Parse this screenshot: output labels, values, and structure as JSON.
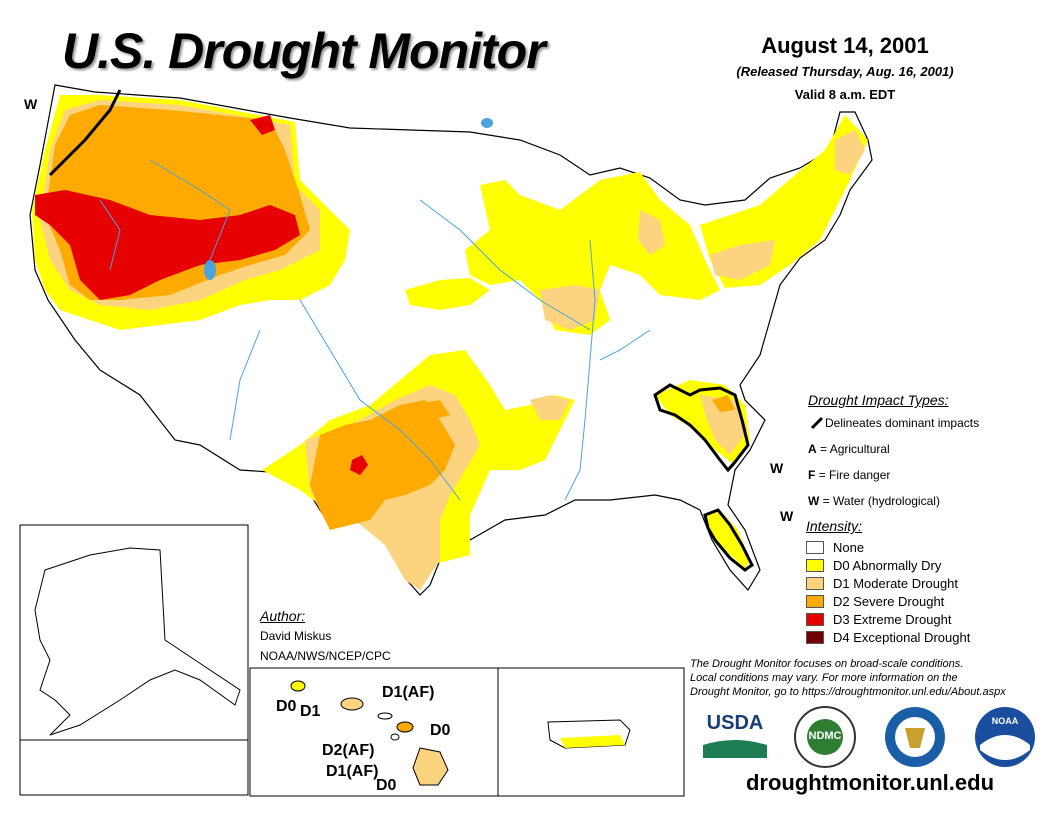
{
  "header": {
    "title": "U.S. Drought Monitor",
    "date": "August 14, 2001",
    "released": "(Released Thursday, Aug. 16, 2001)",
    "valid": "Valid 8 a.m. EDT"
  },
  "map_labels": {
    "w_northwest": "W",
    "w_carolina": "W",
    "w_florida": "W"
  },
  "hawaii_labels": {
    "d0_top": "D0",
    "d1_top": "D1",
    "d1af_top": "D1(AF)",
    "d0_mid": "D0",
    "d2af": "D2(AF)",
    "d1af_bottom": "D1(AF)",
    "d0_bottom": "D0"
  },
  "impact_legend": {
    "heading": "Drought Impact Types:",
    "delineates": "Delineates dominant impacts",
    "types": [
      {
        "key": "A",
        "label": "= Agricultural"
      },
      {
        "key": "F",
        "label": "= Fire danger"
      },
      {
        "key": "W",
        "label": "= Water (hydrological)"
      }
    ]
  },
  "intensity_legend": {
    "heading": "Intensity:",
    "items": [
      {
        "label": "None",
        "color": "#ffffff"
      },
      {
        "label": "D0 Abnormally Dry",
        "color": "#ffff00"
      },
      {
        "label": "D1 Moderate Drought",
        "color": "#fcd37f"
      },
      {
        "label": "D2 Severe Drought",
        "color": "#ffaa00"
      },
      {
        "label": "D3 Extreme Drought",
        "color": "#e60000"
      },
      {
        "label": "D4 Exceptional Drought",
        "color": "#730000"
      }
    ]
  },
  "author": {
    "heading": "Author:",
    "name": "David Miskus",
    "org": "NOAA/NWS/NCEP/CPC"
  },
  "disclaimer": {
    "line1": "The Drought Monitor focuses on broad-scale conditions.",
    "line2": "Local conditions may vary. For more information on the",
    "line3": "Drought Monitor, go to https://droughtmonitor.unl.edu/About.aspx"
  },
  "logos": {
    "usda": "USDA",
    "ndmc": "NDMC",
    "noaa": "NOAA"
  },
  "url": "droughtmonitor.unl.edu",
  "colors": {
    "d0": "#ffff00",
    "d1": "#fcd37f",
    "d2": "#ffaa00",
    "d3": "#e60000",
    "d4": "#730000",
    "water": "#4aa3df",
    "border": "#000000"
  }
}
